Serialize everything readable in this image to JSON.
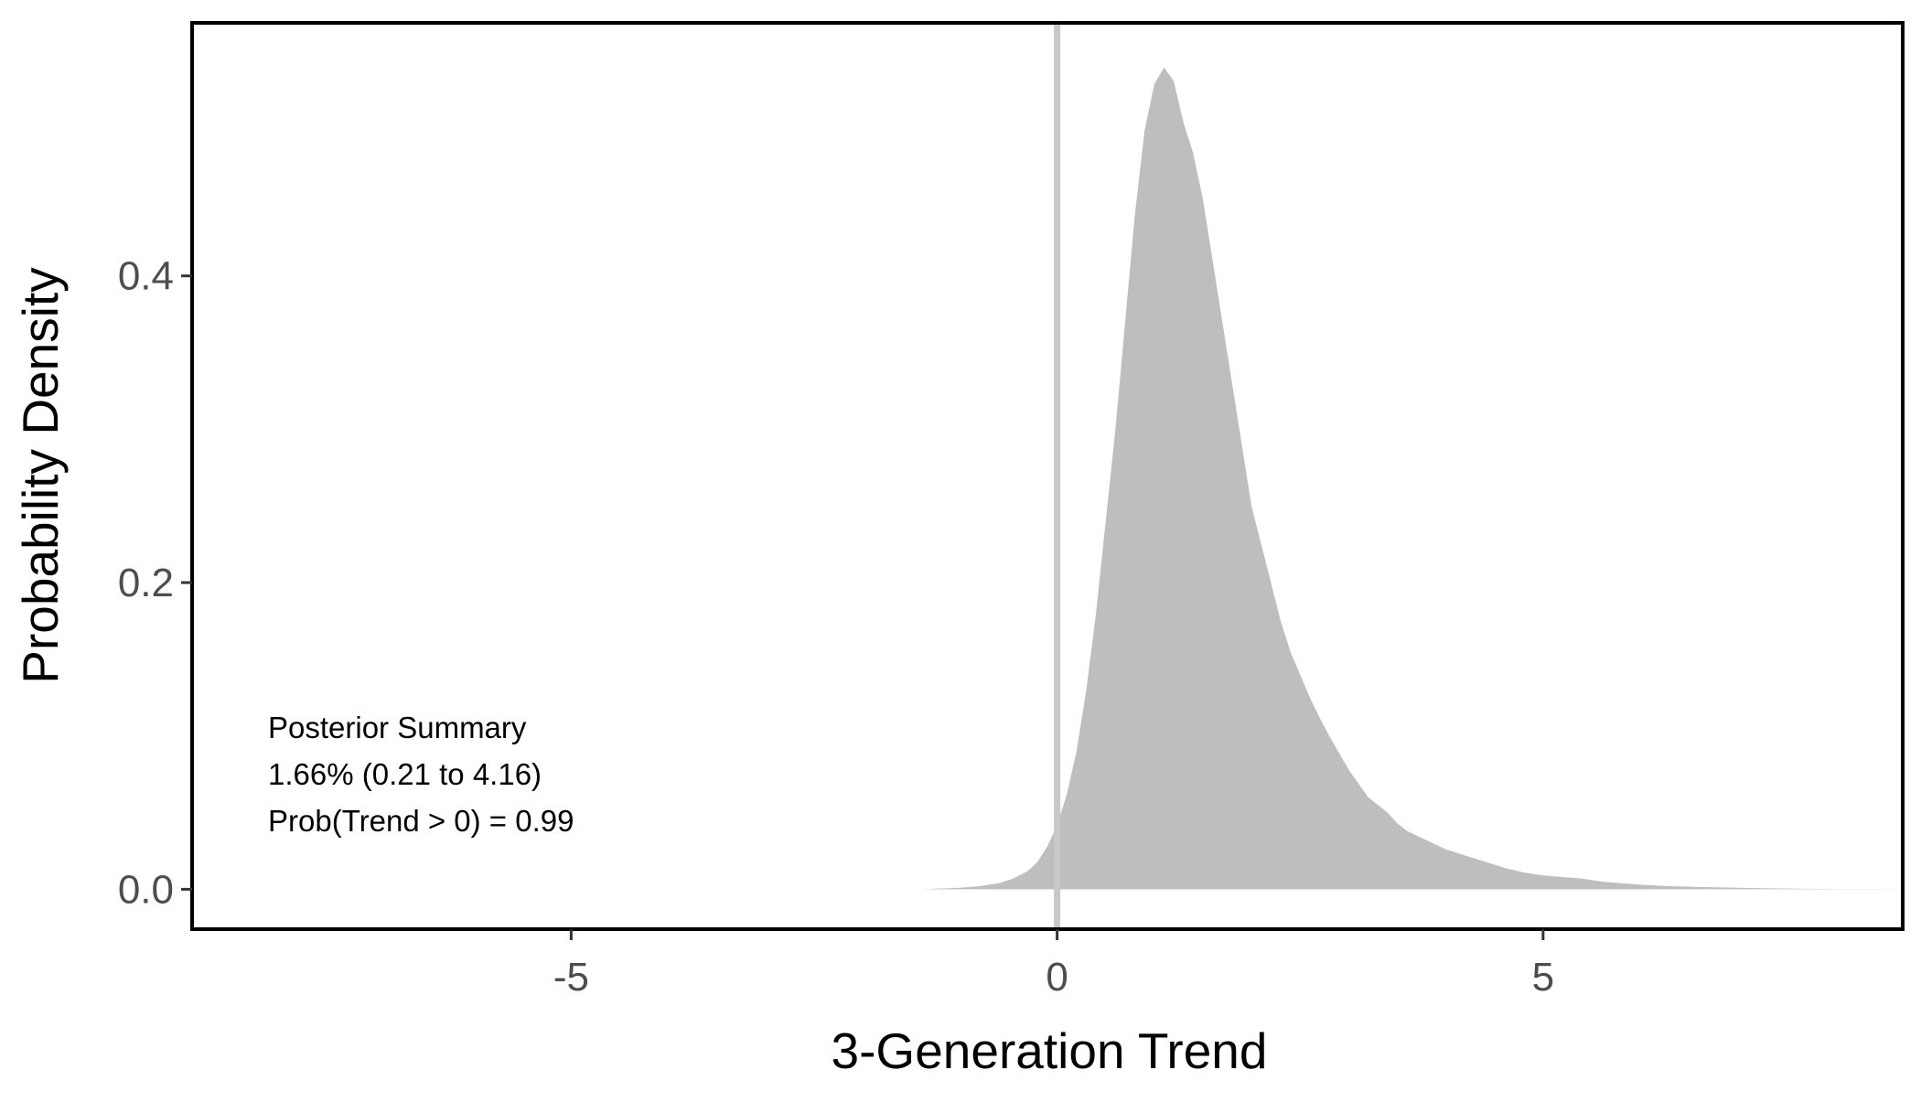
{
  "chart_data": {
    "type": "area",
    "title": "",
    "xlabel": "3-Generation Trend",
    "ylabel": "Probability Density",
    "xlim": [
      -8.9,
      8.7
    ],
    "ylim": [
      -0.026,
      0.565
    ],
    "x_ticks": [
      -5,
      0,
      5
    ],
    "x_tick_labels": [
      "-5",
      "0",
      "5"
    ],
    "y_ticks": [
      0.0,
      0.2,
      0.4
    ],
    "y_tick_labels": [
      "0.0",
      "0.2",
      "0.4"
    ],
    "grid": false,
    "legend": "none",
    "reference_line": {
      "x": 0,
      "color": "#c8c8c8"
    },
    "fill_color": "#bebebe",
    "series": [
      {
        "x": [
          -1.4,
          -1.0,
          -0.8,
          -0.6,
          -0.45,
          -0.3,
          -0.2,
          -0.1,
          0.0,
          0.1,
          0.2,
          0.3,
          0.4,
          0.5,
          0.6,
          0.7,
          0.8,
          0.9,
          1.0,
          1.1,
          1.2,
          1.3,
          1.4,
          1.5,
          1.6,
          1.7,
          1.8,
          1.9,
          2.0,
          2.1,
          2.2,
          2.3,
          2.4,
          2.5,
          2.6,
          2.7,
          2.8,
          3.0,
          3.2,
          3.4,
          3.5,
          3.6,
          3.8,
          4.0,
          4.3,
          4.6,
          4.8,
          5.0,
          5.2,
          5.4,
          5.6,
          5.8,
          6.0,
          6.3,
          6.6,
          7.0,
          7.5,
          8.0,
          8.7
        ],
        "y": [
          0.0,
          0.001,
          0.002,
          0.004,
          0.007,
          0.012,
          0.018,
          0.028,
          0.042,
          0.062,
          0.09,
          0.13,
          0.18,
          0.24,
          0.3,
          0.37,
          0.44,
          0.495,
          0.525,
          0.536,
          0.527,
          0.5,
          0.48,
          0.45,
          0.41,
          0.37,
          0.33,
          0.29,
          0.25,
          0.225,
          0.2,
          0.175,
          0.155,
          0.14,
          0.125,
          0.112,
          0.1,
          0.078,
          0.06,
          0.05,
          0.043,
          0.038,
          0.032,
          0.026,
          0.02,
          0.014,
          0.011,
          0.009,
          0.008,
          0.007,
          0.005,
          0.004,
          0.003,
          0.002,
          0.0015,
          0.001,
          0.0005,
          0.0002,
          0.0
        ]
      }
    ],
    "annotation": {
      "lines": [
        "Posterior Summary",
        "1.66% (0.21 to 4.16)",
        "Prob(Trend > 0) = 0.99"
      ]
    }
  }
}
